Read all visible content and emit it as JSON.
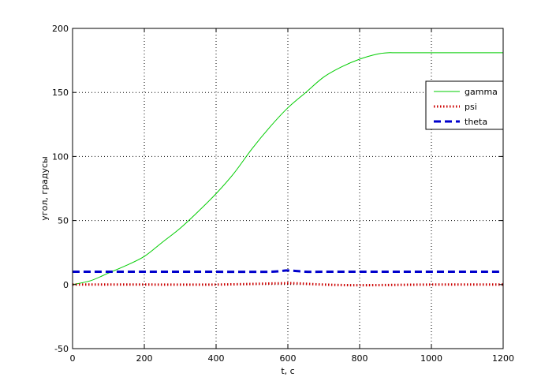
{
  "chart_data": {
    "type": "line",
    "title": "",
    "xlabel": "t, c",
    "ylabel": "угол, градусы",
    "xlim": [
      0,
      1200
    ],
    "ylim": [
      -50,
      200
    ],
    "xticks": [
      0,
      200,
      400,
      600,
      800,
      1000,
      1200
    ],
    "yticks": [
      -50,
      0,
      50,
      100,
      150,
      200
    ],
    "grid": true,
    "legend_position": "top-right",
    "series": [
      {
        "name": "gamma",
        "color": "#00cc00",
        "style": "solid",
        "x": [
          0,
          50,
          100,
          150,
          200,
          250,
          300,
          350,
          400,
          450,
          500,
          550,
          600,
          650,
          700,
          750,
          800,
          850,
          880,
          900,
          1000,
          1100,
          1200
        ],
        "y": [
          0,
          3,
          9,
          15,
          22,
          33,
          44,
          57,
          71,
          87,
          106,
          123,
          138,
          150,
          162,
          170,
          176,
          180,
          181,
          181,
          181,
          181,
          181
        ]
      },
      {
        "name": "psi",
        "color": "#cc0000",
        "style": "dotted",
        "x": [
          0,
          200,
          400,
          580,
          620,
          700,
          800,
          1000,
          1200
        ],
        "y": [
          0,
          0,
          0,
          1,
          1,
          0,
          -0.5,
          0,
          0
        ]
      },
      {
        "name": "theta",
        "color": "#0000cc",
        "style": "dashed",
        "x": [
          0,
          200,
          400,
          550,
          600,
          650,
          700,
          1000,
          1200
        ],
        "y": [
          10,
          10,
          10,
          10,
          11,
          10,
          10,
          10,
          10
        ]
      }
    ]
  }
}
